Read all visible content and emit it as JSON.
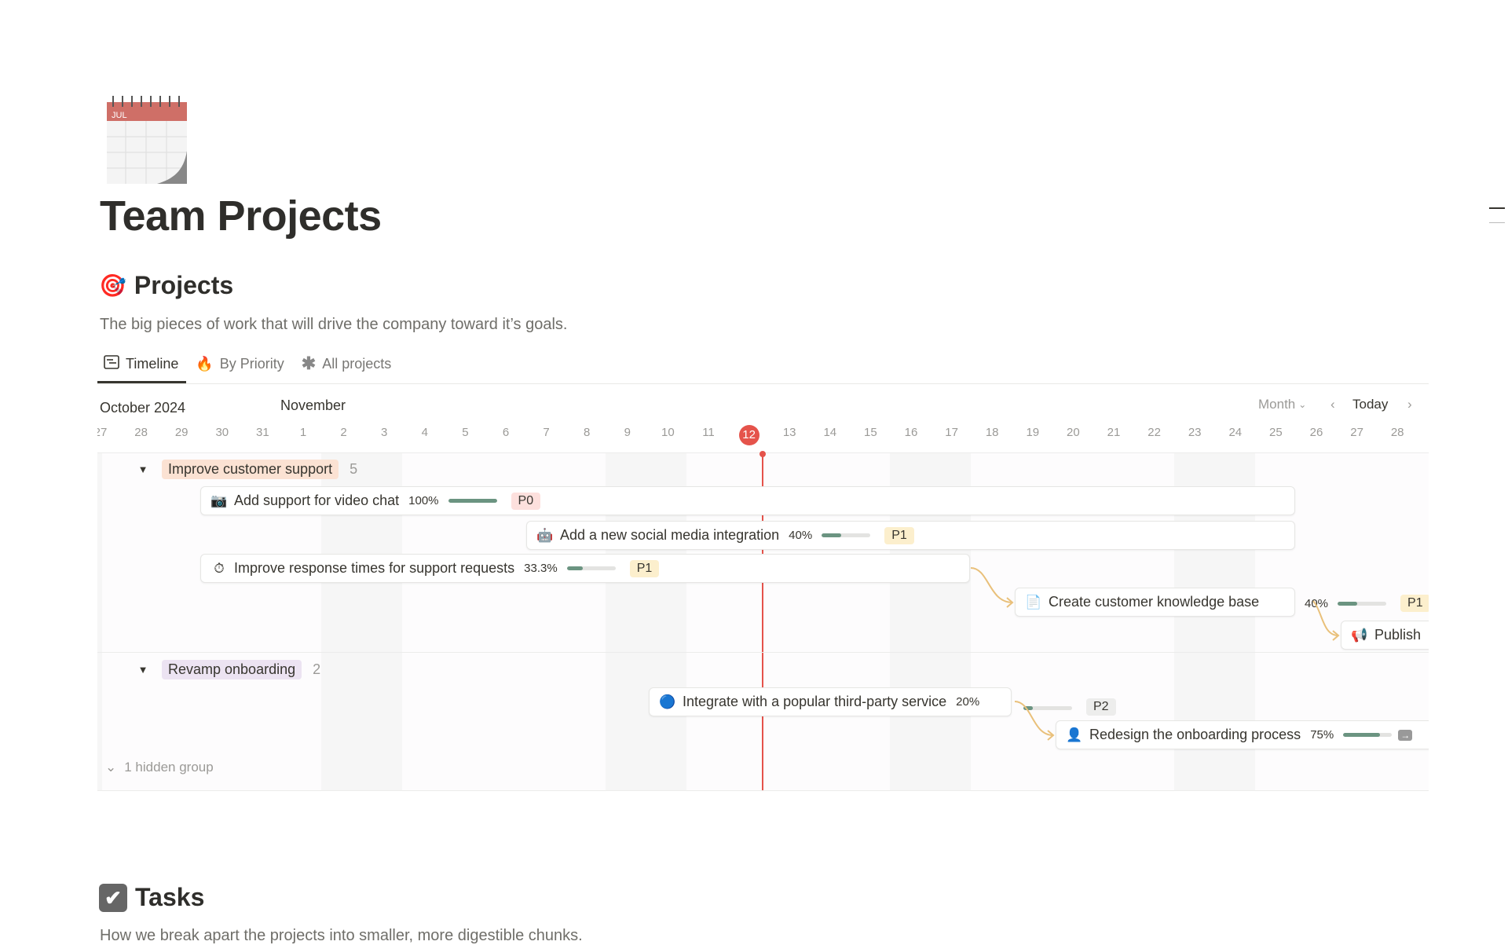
{
  "page": {
    "title": "Team Projects",
    "cover_icon": "calendar-icon",
    "cover_month": "JUL"
  },
  "projects": {
    "icon": "target-icon",
    "heading": "Projects",
    "description": "The big pieces of work that will drive the company toward it’s goals.",
    "tabs": [
      {
        "label": "Timeline",
        "icon": "timeline-icon",
        "active": true
      },
      {
        "label": "By Priority",
        "icon": "fire-icon"
      },
      {
        "label": "All projects",
        "icon": "asterisk-icon"
      }
    ],
    "timeline": {
      "month_left": "October 2024",
      "month_right": "November",
      "view": "Month",
      "today_label": "Today",
      "days": [
        "27",
        "28",
        "29",
        "30",
        "31",
        "1",
        "2",
        "3",
        "4",
        "5",
        "6",
        "7",
        "8",
        "9",
        "10",
        "11",
        "12",
        "13",
        "14",
        "15",
        "16",
        "17",
        "18",
        "19",
        "20",
        "21",
        "22",
        "23",
        "24",
        "25",
        "26",
        "27",
        "28"
      ],
      "today": "12",
      "groups": [
        {
          "name": "Improve customer support",
          "count": "5",
          "color": "#fbe2d3"
        },
        {
          "name": "Revamp onboarding",
          "count": "2",
          "color": "#ece3f2"
        }
      ],
      "items": [
        {
          "icon": "camera",
          "title": "Add support for video chat",
          "pct": "100%",
          "progress": 1.0,
          "priority": "P0"
        },
        {
          "icon": "robot",
          "title": "Add a new social media integration",
          "pct": "40%",
          "progress": 0.4,
          "priority": "P1"
        },
        {
          "icon": "stopwatch",
          "title": "Improve response times for support requests",
          "pct": "33.3%",
          "progress": 0.333,
          "priority": "P1"
        },
        {
          "icon": "document",
          "title": "Create customer knowledge base",
          "pct": "40%",
          "progress": 0.4,
          "priority": "P1"
        },
        {
          "icon": "megaphone",
          "title": "Publish"
        },
        {
          "icon": "blue-orb",
          "title": "Integrate with a popular third-party service",
          "pct": "20%",
          "progress": 0.2,
          "priority": "P2"
        },
        {
          "icon": "person",
          "title": "Redesign the onboarding process",
          "pct": "75%",
          "progress": 0.75
        }
      ],
      "hidden_groups": "1 hidden group"
    }
  },
  "tasks": {
    "icon": "checkbox-icon",
    "heading": "Tasks",
    "description": "How we break apart the projects into smaller, more digestible chunks."
  },
  "colors": {
    "accent_today": "#e5534b",
    "progress": "#6b9481",
    "dependency": "#e9c07a"
  }
}
